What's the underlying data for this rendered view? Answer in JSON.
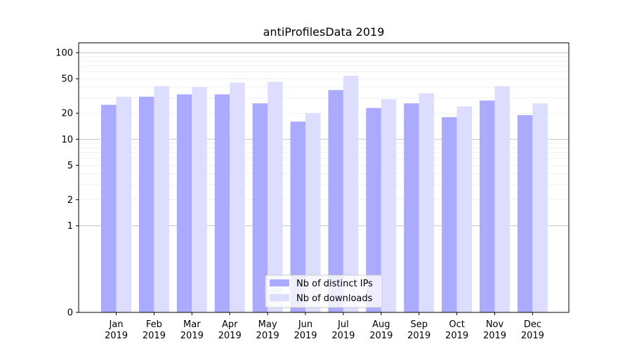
{
  "chart_data": {
    "type": "bar",
    "scale": "symlog",
    "title": "antiProfilesData 2019",
    "xlabel": "",
    "ylabel": "",
    "ylim": [
      0,
      130
    ],
    "categories": [
      [
        "Jan",
        "2019"
      ],
      [
        "Feb",
        "2019"
      ],
      [
        "Mar",
        "2019"
      ],
      [
        "Apr",
        "2019"
      ],
      [
        "May",
        "2019"
      ],
      [
        "Jun",
        "2019"
      ],
      [
        "Jul",
        "2019"
      ],
      [
        "Aug",
        "2019"
      ],
      [
        "Sep",
        "2019"
      ],
      [
        "Oct",
        "2019"
      ],
      [
        "Nov",
        "2019"
      ],
      [
        "Dec",
        "2019"
      ]
    ],
    "yticks": [
      {
        "value": 0,
        "label": "0"
      },
      {
        "value": 1,
        "label": "1"
      },
      {
        "value": 2,
        "label": "2"
      },
      {
        "value": 5,
        "label": "5"
      },
      {
        "value": 10,
        "label": "10"
      },
      {
        "value": 20,
        "label": "20"
      },
      {
        "value": 50,
        "label": "50"
      },
      {
        "value": 100,
        "label": "100"
      }
    ],
    "series": [
      {
        "name": "Nb of distinct IPs",
        "color": "#aaaaff",
        "values": [
          25,
          31,
          33,
          33,
          26,
          16,
          37,
          23,
          26,
          18,
          28,
          19
        ]
      },
      {
        "name": "Nb of downloads",
        "color": "#ddddff",
        "values": [
          31,
          41,
          40,
          45,
          46,
          20,
          54,
          29,
          34,
          24,
          41,
          26
        ]
      }
    ],
    "legend_position": "bottom-center",
    "grid": true
  }
}
